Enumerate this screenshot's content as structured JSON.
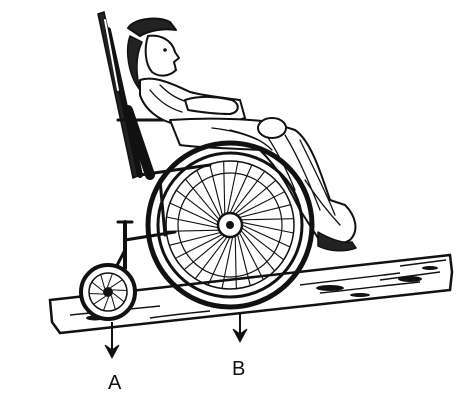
{
  "labels": {
    "a": "A",
    "b": "B"
  },
  "colors": {
    "ink": "#111111",
    "background": "#ffffff"
  }
}
